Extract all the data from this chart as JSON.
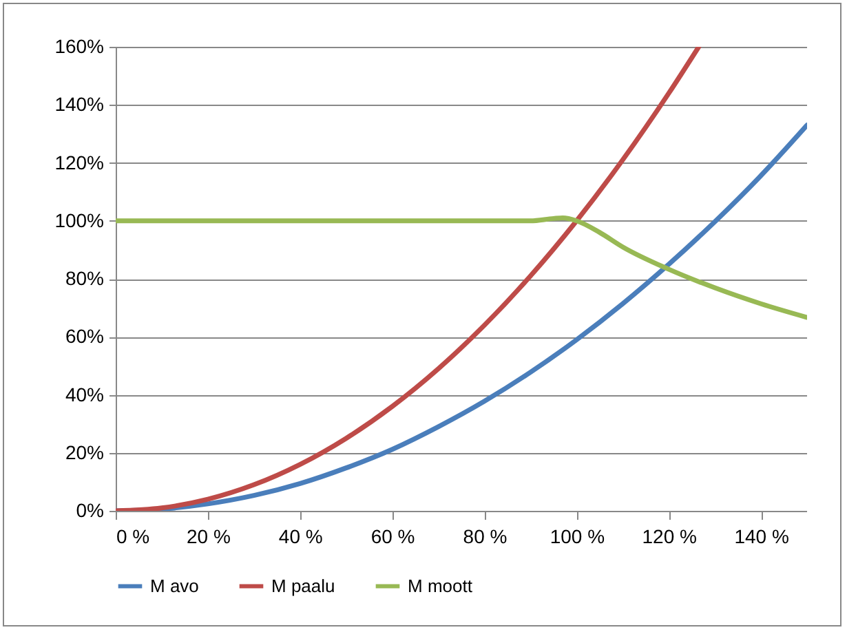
{
  "chart_data": {
    "type": "line",
    "x": [
      0,
      10,
      20,
      30,
      40,
      50,
      60,
      70,
      80,
      90,
      100,
      110,
      120,
      130,
      140,
      150
    ],
    "series": [
      {
        "name": "M avo",
        "color": "#4a7ebb",
        "values": [
          0,
          0.6,
          2.4,
          5.3,
          9.4,
          14.8,
          21.2,
          29,
          37.8,
          47.8,
          59,
          71.4,
          85,
          99.7,
          115.6,
          133
        ]
      },
      {
        "name": "M paalu",
        "color": "#be4b48",
        "x": [
          0,
          10,
          20,
          30,
          40,
          50,
          60,
          70,
          80,
          90,
          100,
          110,
          120,
          126.5
        ],
        "values": [
          0,
          1,
          4,
          9,
          16,
          25,
          36,
          49,
          64,
          81,
          100,
          121,
          144,
          160
        ]
      },
      {
        "name": "M moott",
        "color": "#98b954",
        "x": [
          0,
          10,
          20,
          30,
          40,
          50,
          60,
          70,
          80,
          90,
          95,
          97,
          100,
          105,
          110,
          120,
          130,
          140,
          150
        ],
        "values": [
          100,
          100,
          100,
          100,
          100,
          100,
          100,
          100,
          100,
          100,
          100.8,
          101,
          100,
          96,
          91,
          83.3,
          76.9,
          71.4,
          66.7
        ]
      }
    ],
    "xlim": [
      0,
      150
    ],
    "xticks": [
      {
        "value": 0,
        "label": "0 %"
      },
      {
        "value": 20,
        "label": "20 %"
      },
      {
        "value": 40,
        "label": "40 %"
      },
      {
        "value": 60,
        "label": "60 %"
      },
      {
        "value": 80,
        "label": "80 %"
      },
      {
        "value": 100,
        "label": "100 %"
      },
      {
        "value": 120,
        "label": "120 %"
      },
      {
        "value": 140,
        "label": "140 %"
      }
    ],
    "ylim": [
      0,
      160
    ],
    "yticks": [
      {
        "value": 0,
        "label": "0%"
      },
      {
        "value": 20,
        "label": "20%"
      },
      {
        "value": 40,
        "label": "40%"
      },
      {
        "value": 60,
        "label": "60%"
      },
      {
        "value": 80,
        "label": "80%"
      },
      {
        "value": 100,
        "label": "100%"
      },
      {
        "value": 120,
        "label": "120%"
      },
      {
        "value": 140,
        "label": "140%"
      },
      {
        "value": 160,
        "label": "160%"
      }
    ],
    "grid": "y",
    "legend": "bottom",
    "marker": "none",
    "line_style": "solid"
  }
}
